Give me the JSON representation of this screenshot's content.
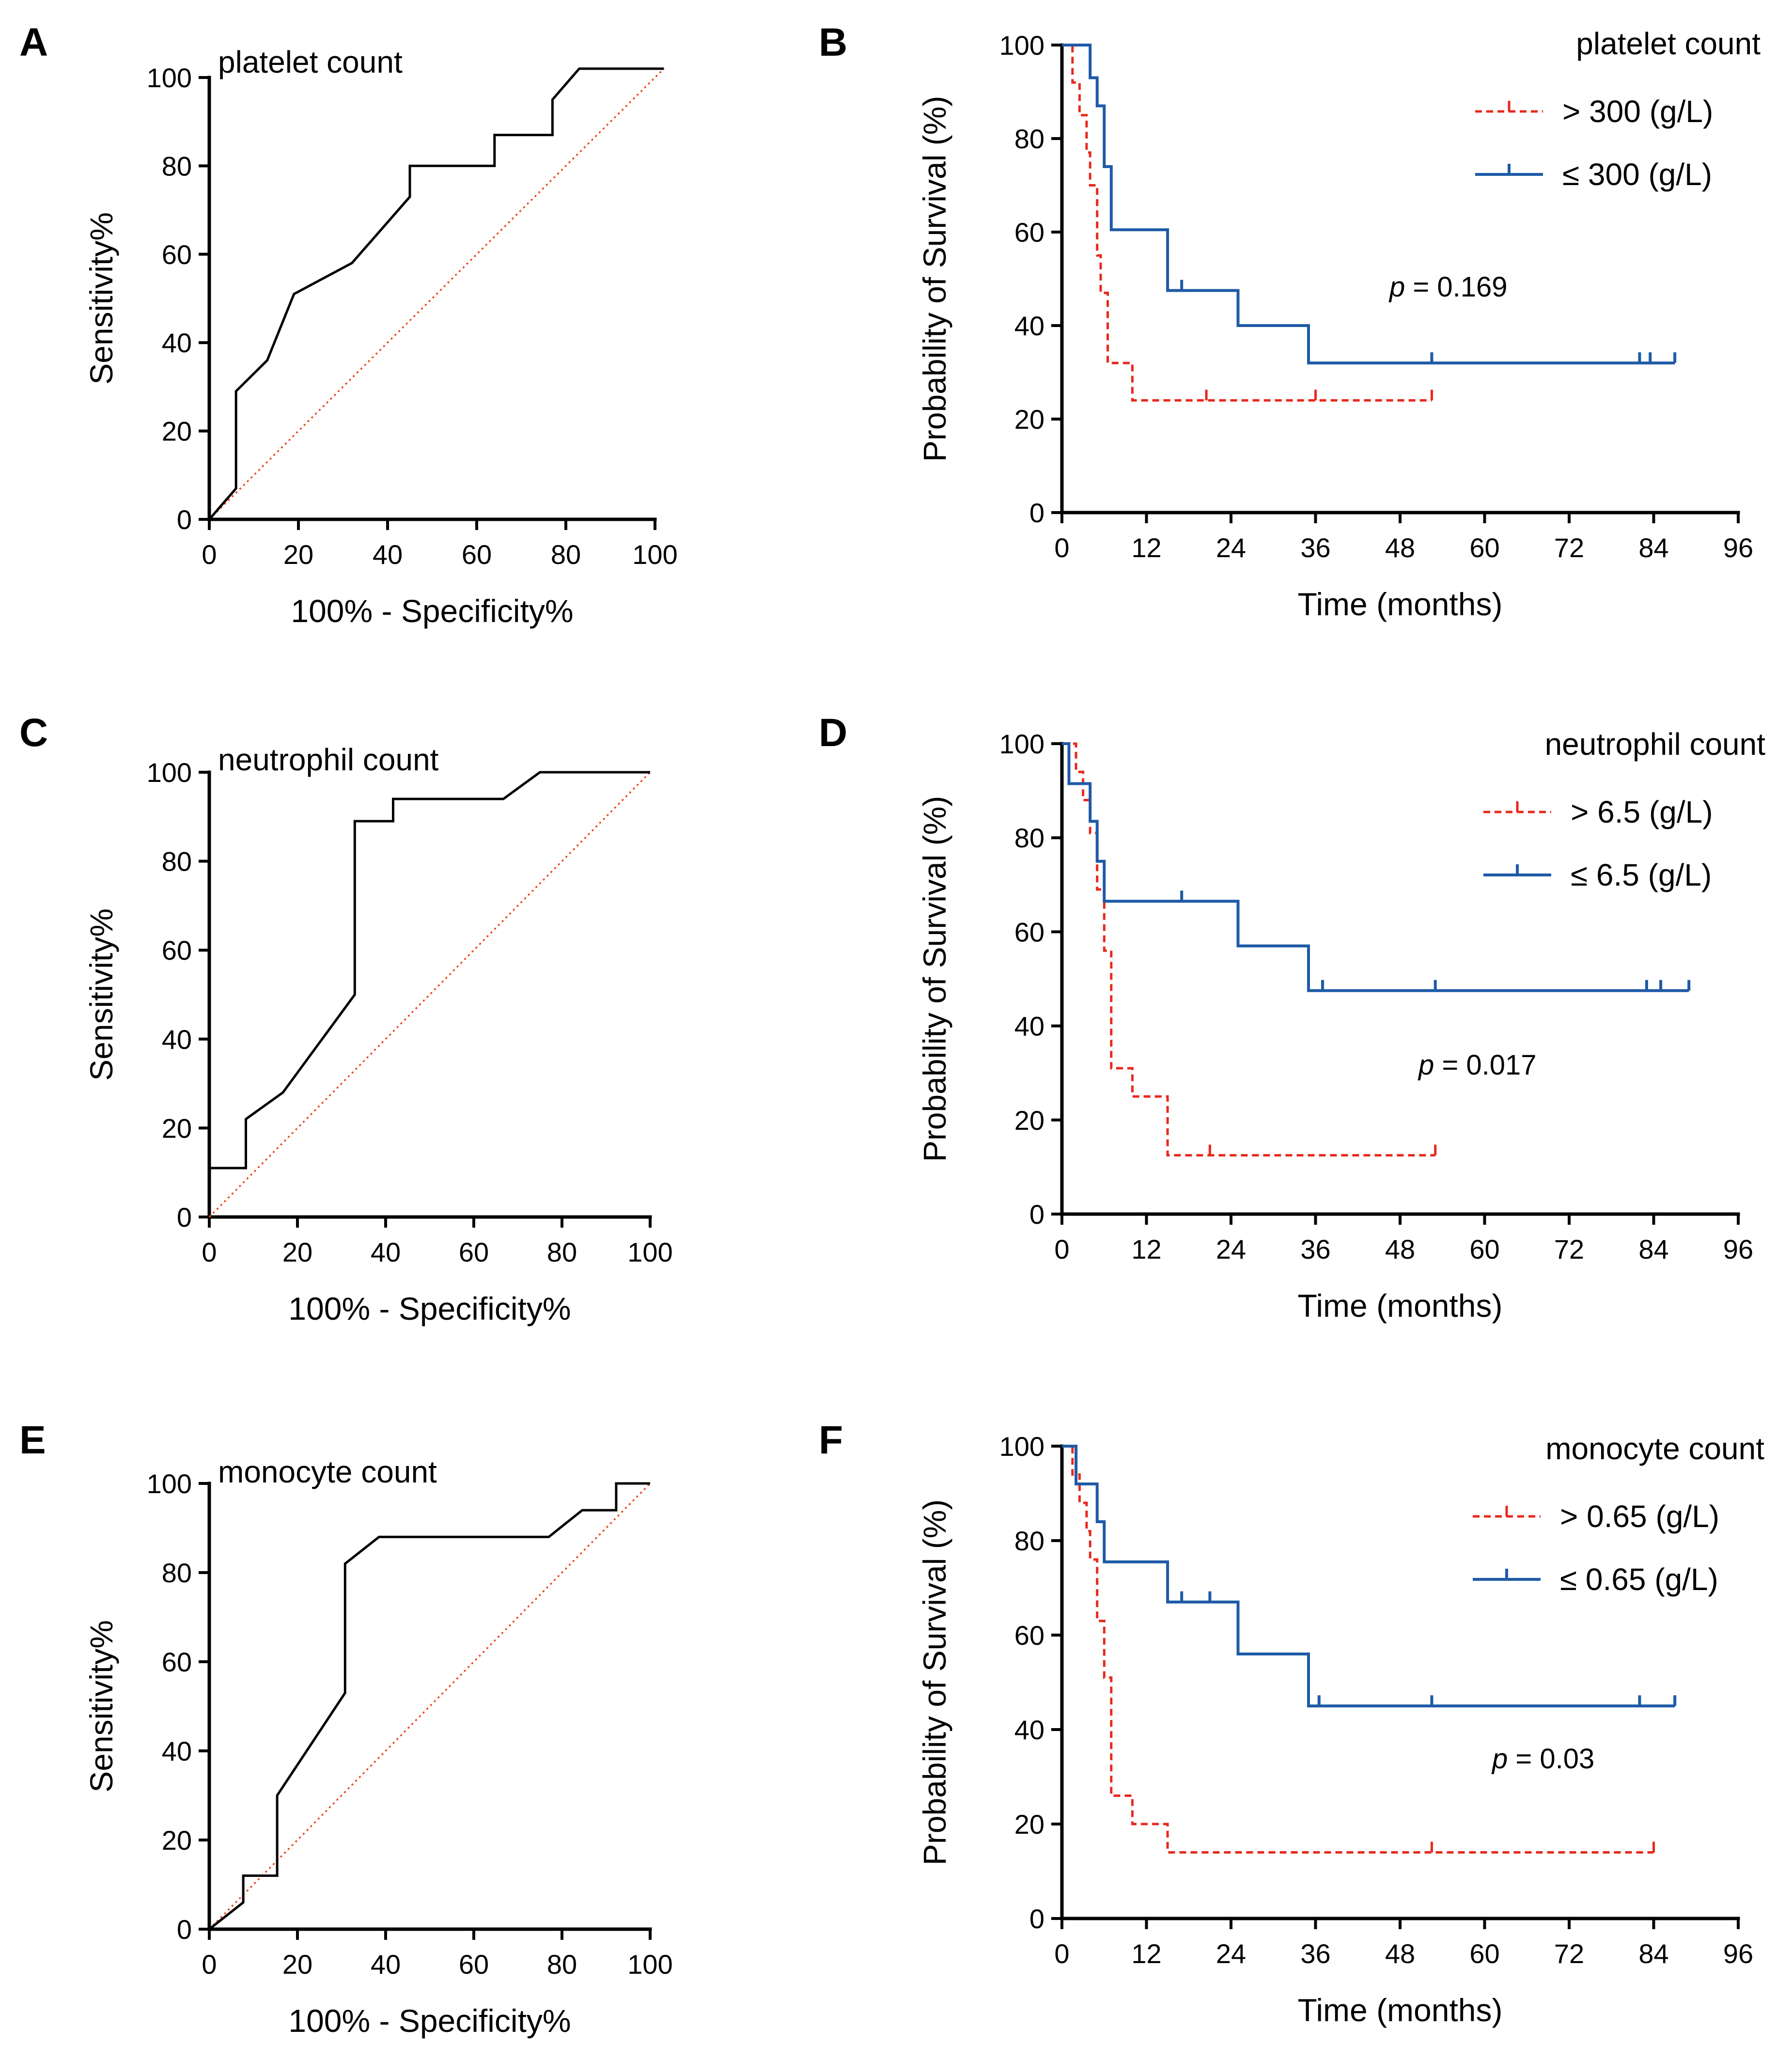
{
  "chart_data": [
    {
      "id": "A",
      "type": "line",
      "subtype": "roc",
      "panel_label": "A",
      "title": "platelet count",
      "xlabel": "100% - Specificity%",
      "ylabel": "Sensitivity%",
      "xlim": [
        0,
        100
      ],
      "ylim": [
        0,
        100
      ],
      "xticks": [
        0,
        20,
        40,
        60,
        80,
        100
      ],
      "yticks": [
        0,
        20,
        40,
        60,
        80,
        100
      ],
      "curve": [
        [
          0,
          0
        ],
        [
          6,
          7
        ],
        [
          6,
          29
        ],
        [
          13,
          36
        ],
        [
          19,
          51
        ],
        [
          32,
          58
        ],
        [
          45,
          73
        ],
        [
          45,
          80
        ],
        [
          64,
          80
        ],
        [
          64,
          87
        ],
        [
          77,
          87
        ],
        [
          77,
          95
        ],
        [
          83,
          102
        ],
        [
          102,
          102
        ]
      ],
      "reference": [
        [
          0,
          0
        ],
        [
          102,
          102
        ]
      ]
    },
    {
      "id": "B",
      "type": "line",
      "subtype": "kaplan-meier",
      "panel_label": "B",
      "title": "",
      "xlabel": "Time (months)",
      "ylabel": "Probability of Survival (%)",
      "xlim": [
        0,
        96
      ],
      "ylim": [
        0,
        100
      ],
      "xticks": [
        0,
        12,
        24,
        36,
        48,
        60,
        72,
        84,
        96
      ],
      "yticks": [
        0,
        20,
        40,
        60,
        80,
        100
      ],
      "legend_title": "platelet count",
      "p_prefix": "p",
      "p_value": "= 0.169",
      "series": [
        {
          "name": "> 300 (g/L)",
          "style": "dashed",
          "color": "#e8281d",
          "steps": [
            [
              0,
              100
            ],
            [
              1.5,
              92
            ],
            [
              2.5,
              85
            ],
            [
              3.5,
              77
            ],
            [
              4,
              70
            ],
            [
              5,
              55
            ],
            [
              5.5,
              47
            ],
            [
              6.5,
              32
            ],
            [
              10,
              24
            ],
            [
              52.5,
              24
            ]
          ],
          "censored": [
            [
              20.5,
              24
            ],
            [
              36,
              24
            ],
            [
              52.5,
              24
            ]
          ]
        },
        {
          "name": "≤ 300 (g/L)",
          "style": "solid",
          "color": "#1f5aa6",
          "steps": [
            [
              0,
              100
            ],
            [
              4,
              93
            ],
            [
              5,
              87
            ],
            [
              6,
              74
            ],
            [
              7,
              60.5
            ],
            [
              15,
              47.5
            ],
            [
              25,
              40
            ],
            [
              35,
              32
            ],
            [
              87,
              32
            ]
          ],
          "censored": [
            [
              17,
              47.5
            ],
            [
              52.5,
              32
            ],
            [
              82,
              32
            ],
            [
              83.5,
              32
            ],
            [
              87,
              32
            ]
          ]
        }
      ]
    },
    {
      "id": "C",
      "type": "line",
      "subtype": "roc",
      "panel_label": "C",
      "title": "neutrophil count",
      "xlabel": "100% - Specificity%",
      "ylabel": "Sensitivity%",
      "xlim": [
        0,
        100
      ],
      "ylim": [
        0,
        100
      ],
      "xticks": [
        0,
        20,
        40,
        60,
        80,
        100
      ],
      "yticks": [
        0,
        20,
        40,
        60,
        80,
        100
      ],
      "curve": [
        [
          0,
          11
        ],
        [
          8.3,
          11
        ],
        [
          8.3,
          22
        ],
        [
          16.7,
          28
        ],
        [
          33,
          50
        ],
        [
          33,
          89
        ],
        [
          41.7,
          89
        ],
        [
          41.7,
          94
        ],
        [
          66.7,
          94
        ],
        [
          75,
          100
        ],
        [
          100,
          100
        ]
      ],
      "reference": [
        [
          0,
          0
        ],
        [
          100,
          100
        ]
      ]
    },
    {
      "id": "D",
      "type": "line",
      "subtype": "kaplan-meier",
      "panel_label": "D",
      "title": "",
      "xlabel": "Time (months)",
      "ylabel": "Probability of Survival (%)",
      "xlim": [
        0,
        96
      ],
      "ylim": [
        0,
        100
      ],
      "xticks": [
        0,
        12,
        24,
        36,
        48,
        60,
        72,
        84,
        96
      ],
      "yticks": [
        0,
        20,
        40,
        60,
        80,
        100
      ],
      "legend_title": "neutrophil count",
      "p_prefix": "p",
      "p_value": "= 0.017",
      "series": [
        {
          "name": "> 6.5 (g/L)",
          "style": "dashed",
          "color": "#e8281d",
          "steps": [
            [
              0,
              100
            ],
            [
              2,
              94
            ],
            [
              3,
              88
            ],
            [
              4,
              81
            ],
            [
              5,
              69
            ],
            [
              6,
              56
            ],
            [
              7,
              31
            ],
            [
              10,
              25
            ],
            [
              15,
              12.5
            ],
            [
              53,
              12.5
            ]
          ],
          "censored": [
            [
              21,
              12.5
            ],
            [
              53,
              12.5
            ]
          ]
        },
        {
          "name": "≤ 6.5 (g/L)",
          "style": "solid",
          "color": "#1f5aa6",
          "steps": [
            [
              0,
              100
            ],
            [
              1,
              91.5
            ],
            [
              4,
              83.5
            ],
            [
              5,
              75
            ],
            [
              6,
              66.5
            ],
            [
              25,
              57
            ],
            [
              35,
              47.5
            ],
            [
              89,
              47.5
            ]
          ],
          "censored": [
            [
              17,
              66.5
            ],
            [
              37,
              47.5
            ],
            [
              53,
              47.5
            ],
            [
              83,
              47.5
            ],
            [
              85,
              47.5
            ],
            [
              89,
              47.5
            ]
          ]
        }
      ]
    },
    {
      "id": "E",
      "type": "line",
      "subtype": "roc",
      "panel_label": "E",
      "title": "monocyte count",
      "xlabel": "100% - Specificity%",
      "ylabel": "Sensitivity%",
      "xlim": [
        0,
        100
      ],
      "ylim": [
        0,
        100
      ],
      "xticks": [
        0,
        20,
        40,
        60,
        80,
        100
      ],
      "yticks": [
        0,
        20,
        40,
        60,
        80,
        100
      ],
      "curve": [
        [
          0,
          0
        ],
        [
          7.7,
          6
        ],
        [
          7.7,
          12
        ],
        [
          15.4,
          12
        ],
        [
          15.4,
          30
        ],
        [
          30.8,
          53
        ],
        [
          30.8,
          82
        ],
        [
          38.5,
          88
        ],
        [
          77,
          88
        ],
        [
          84.6,
          94
        ],
        [
          92.3,
          94
        ],
        [
          92.3,
          100
        ],
        [
          100,
          100
        ]
      ],
      "reference": [
        [
          0,
          0
        ],
        [
          100,
          100
        ]
      ]
    },
    {
      "id": "F",
      "type": "line",
      "subtype": "kaplan-meier",
      "panel_label": "F",
      "title": "",
      "xlabel": "Time (months)",
      "ylabel": "Probability of Survival (%)",
      "xlim": [
        0,
        96
      ],
      "ylim": [
        0,
        100
      ],
      "xticks": [
        0,
        12,
        24,
        36,
        48,
        60,
        72,
        84,
        96
      ],
      "yticks": [
        0,
        20,
        40,
        60,
        80,
        100
      ],
      "legend_title": "monocyte count",
      "p_prefix": "p",
      "p_value": "= 0.03",
      "series": [
        {
          "name": "> 0.65 (g/L)",
          "style": "dashed",
          "color": "#e8281d",
          "steps": [
            [
              0,
              100
            ],
            [
              1.5,
              94
            ],
            [
              2.5,
              88
            ],
            [
              3.5,
              82
            ],
            [
              4,
              76
            ],
            [
              5,
              63
            ],
            [
              6,
              51
            ],
            [
              7,
              26
            ],
            [
              10,
              20
            ],
            [
              15,
              14
            ],
            [
              84,
              14
            ]
          ],
          "censored": [
            [
              52.5,
              14
            ],
            [
              84,
              14
            ]
          ]
        },
        {
          "name": "≤ 0.65 (g/L)",
          "style": "solid",
          "color": "#1f5aa6",
          "steps": [
            [
              0,
              100
            ],
            [
              2,
              92
            ],
            [
              5,
              84
            ],
            [
              6,
              75.5
            ],
            [
              15,
              67
            ],
            [
              25,
              56
            ],
            [
              35,
              45
            ],
            [
              87,
              45
            ]
          ],
          "censored": [
            [
              17,
              67
            ],
            [
              21,
              67
            ],
            [
              36.5,
              45
            ],
            [
              52.5,
              45
            ],
            [
              82,
              45
            ],
            [
              87,
              45
            ]
          ]
        }
      ]
    }
  ]
}
